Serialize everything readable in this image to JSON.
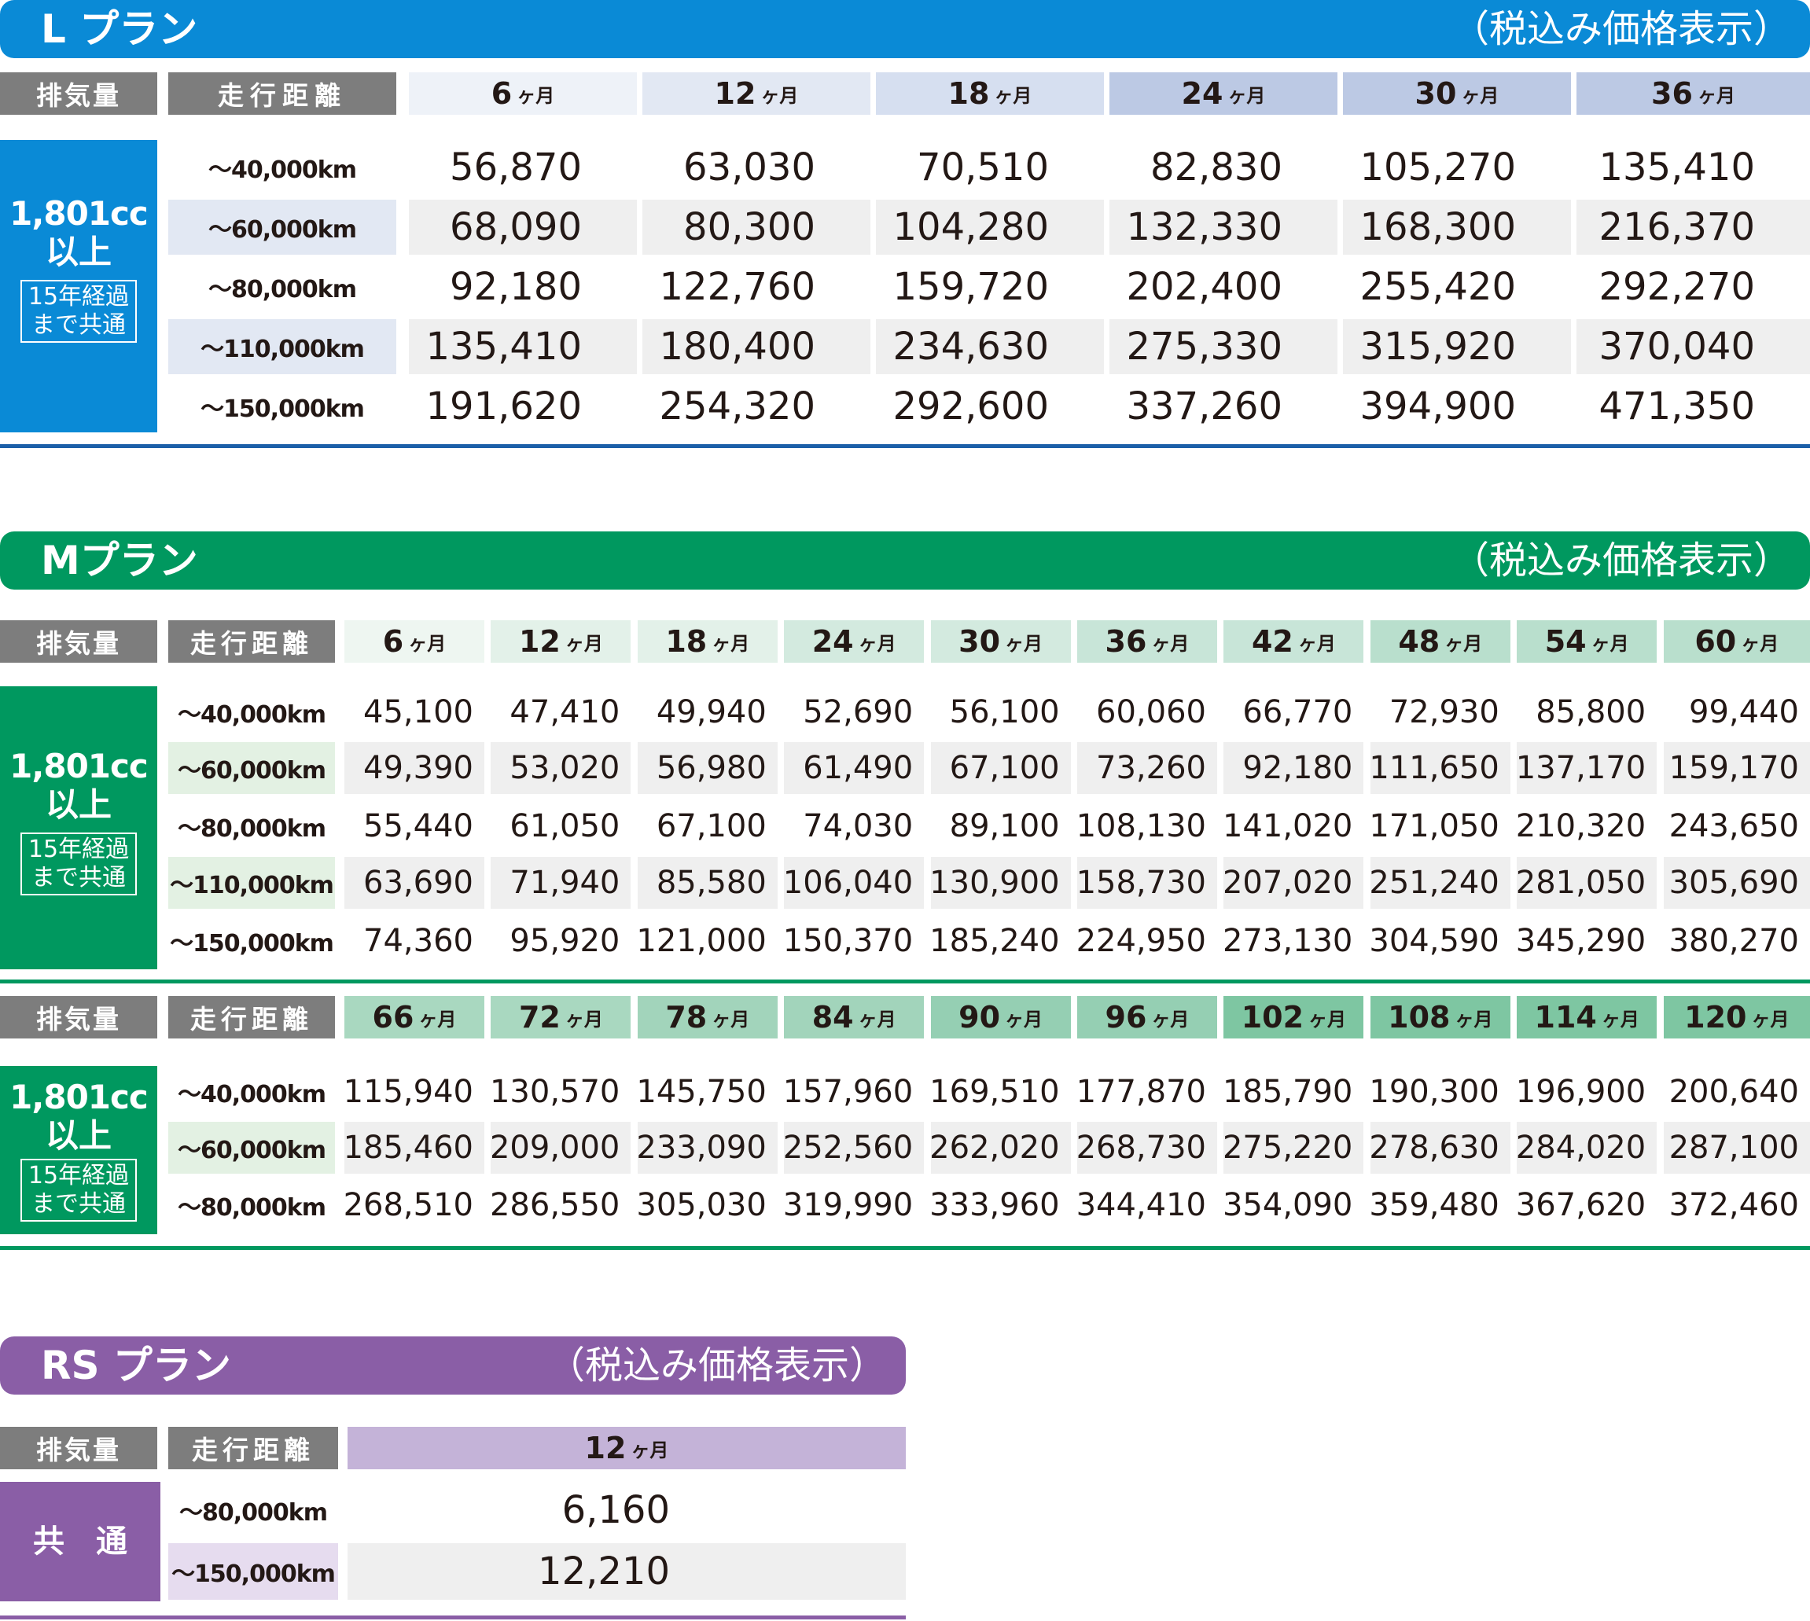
{
  "colors": {
    "l_plan": "#0a8ad6",
    "l_rule": "#1c5fa8",
    "m_plan": "#00985f",
    "m_rule": "#00985f",
    "rs_plan": "#8a5ea6",
    "header_grey": "#7d7d7d",
    "row_shade": "#efefef"
  },
  "l_plan": {
    "title": "L プラン",
    "tax_note": "（税込み価格表示）",
    "header": {
      "displacement": "排気量",
      "mileage": "走行距離",
      "months": [
        {
          "num": "6",
          "unit": "ヶ月"
        },
        {
          "num": "12",
          "unit": "ヶ月"
        },
        {
          "num": "18",
          "unit": "ヶ月"
        },
        {
          "num": "24",
          "unit": "ヶ月"
        },
        {
          "num": "30",
          "unit": "ヶ月"
        },
        {
          "num": "36",
          "unit": "ヶ月"
        }
      ]
    },
    "category": {
      "cc": "1,801cc",
      "ijou": "以上",
      "note_line1": "15年経過",
      "note_line2": "まで共通"
    },
    "rows": [
      {
        "km": "～40,000km",
        "values": [
          "56,870",
          "63,030",
          "70,510",
          "82,830",
          "105,270",
          "135,410"
        ]
      },
      {
        "km": "～60,000km",
        "values": [
          "68,090",
          "80,300",
          "104,280",
          "132,330",
          "168,300",
          "216,370"
        ]
      },
      {
        "km": "～80,000km",
        "values": [
          "92,180",
          "122,760",
          "159,720",
          "202,400",
          "255,420",
          "292,270"
        ]
      },
      {
        "km": "～110,000km",
        "values": [
          "135,410",
          "180,400",
          "234,630",
          "275,330",
          "315,920",
          "370,040"
        ]
      },
      {
        "km": "～150,000km",
        "values": [
          "191,620",
          "254,320",
          "292,600",
          "337,260",
          "394,900",
          "471,350"
        ]
      }
    ]
  },
  "m_plan": {
    "title": "Mプラン",
    "tax_note": "（税込み価格表示）",
    "table1": {
      "header": {
        "displacement": "排気量",
        "mileage": "走行距離",
        "months": [
          {
            "num": "6",
            "unit": "ヶ月"
          },
          {
            "num": "12",
            "unit": "ヶ月"
          },
          {
            "num": "18",
            "unit": "ヶ月"
          },
          {
            "num": "24",
            "unit": "ヶ月"
          },
          {
            "num": "30",
            "unit": "ヶ月"
          },
          {
            "num": "36",
            "unit": "ヶ月"
          },
          {
            "num": "42",
            "unit": "ヶ月"
          },
          {
            "num": "48",
            "unit": "ヶ月"
          },
          {
            "num": "54",
            "unit": "ヶ月"
          },
          {
            "num": "60",
            "unit": "ヶ月"
          }
        ]
      },
      "category": {
        "cc": "1,801cc",
        "ijou": "以上",
        "note_line1": "15年経過",
        "note_line2": "まで共通"
      },
      "rows": [
        {
          "km": "～40,000km",
          "values": [
            "45,100",
            "47,410",
            "49,940",
            "52,690",
            "56,100",
            "60,060",
            "66,770",
            "72,930",
            "85,800",
            "99,440"
          ]
        },
        {
          "km": "～60,000km",
          "values": [
            "49,390",
            "53,020",
            "56,980",
            "61,490",
            "67,100",
            "73,260",
            "92,180",
            "111,650",
            "137,170",
            "159,170"
          ]
        },
        {
          "km": "～80,000km",
          "values": [
            "55,440",
            "61,050",
            "67,100",
            "74,030",
            "89,100",
            "108,130",
            "141,020",
            "171,050",
            "210,320",
            "243,650"
          ]
        },
        {
          "km": "～110,000km",
          "values": [
            "63,690",
            "71,940",
            "85,580",
            "106,040",
            "130,900",
            "158,730",
            "207,020",
            "251,240",
            "281,050",
            "305,690"
          ]
        },
        {
          "km": "～150,000km",
          "values": [
            "74,360",
            "95,920",
            "121,000",
            "150,370",
            "185,240",
            "224,950",
            "273,130",
            "304,590",
            "345,290",
            "380,270"
          ]
        }
      ]
    },
    "table2": {
      "header": {
        "displacement": "排気量",
        "mileage": "走行距離",
        "months": [
          {
            "num": "66",
            "unit": "ヶ月"
          },
          {
            "num": "72",
            "unit": "ヶ月"
          },
          {
            "num": "78",
            "unit": "ヶ月"
          },
          {
            "num": "84",
            "unit": "ヶ月"
          },
          {
            "num": "90",
            "unit": "ヶ月"
          },
          {
            "num": "96",
            "unit": "ヶ月"
          },
          {
            "num": "102",
            "unit": "ヶ月"
          },
          {
            "num": "108",
            "unit": "ヶ月"
          },
          {
            "num": "114",
            "unit": "ヶ月"
          },
          {
            "num": "120",
            "unit": "ヶ月"
          }
        ]
      },
      "category": {
        "cc": "1,801cc",
        "ijou": "以上",
        "note_line1": "15年経過",
        "note_line2": "まで共通"
      },
      "rows": [
        {
          "km": "～40,000km",
          "values": [
            "115,940",
            "130,570",
            "145,750",
            "157,960",
            "169,510",
            "177,870",
            "185,790",
            "190,300",
            "196,900",
            "200,640"
          ]
        },
        {
          "km": "～60,000km",
          "values": [
            "185,460",
            "209,000",
            "233,090",
            "252,560",
            "262,020",
            "268,730",
            "275,220",
            "278,630",
            "284,020",
            "287,100"
          ]
        },
        {
          "km": "～80,000km",
          "values": [
            "268,510",
            "286,550",
            "305,030",
            "319,990",
            "333,960",
            "344,410",
            "354,090",
            "359,480",
            "367,620",
            "372,460"
          ]
        }
      ]
    }
  },
  "rs_plan": {
    "title": "RS プラン",
    "tax_note": "（税込み価格表示）",
    "header": {
      "displacement": "排気量",
      "mileage": "走行距離",
      "months": [
        {
          "num": "12",
          "unit": "ヶ月"
        }
      ]
    },
    "category": {
      "label": "共　通"
    },
    "rows": [
      {
        "km": "～80,000km",
        "values": [
          "6,160"
        ]
      },
      {
        "km": "～150,000km",
        "values": [
          "12,210"
        ]
      }
    ]
  }
}
